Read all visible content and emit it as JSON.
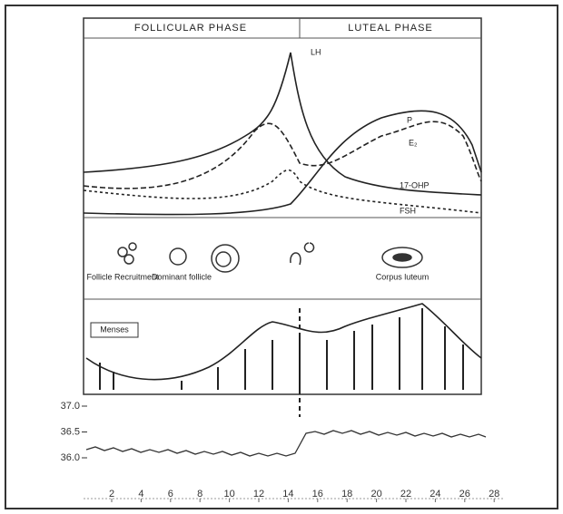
{
  "header": {
    "follicular": "FOLLICULAR PHASE",
    "luteal": "LUTEAL PHASE"
  },
  "hormones": {
    "peak": "LH",
    "progesterone": "P",
    "estradiol": "E₂",
    "oh": "17-OHP",
    "fsh": "FSH"
  },
  "ovary": {
    "recruitment": "Follicle Recruitment",
    "dominant": "Dominant follicle",
    "luteum": "Corpus luteum"
  },
  "endometrium": {
    "label": "Menses"
  },
  "temperature": {
    "yticks": [
      {
        "value": 37.0,
        "label": "37.0"
      },
      36.5,
      {
        "value": 36.0,
        "label": "36.0"
      }
    ],
    "xticks": [
      2,
      4,
      6,
      8,
      10,
      12,
      14,
      16,
      18,
      20,
      22,
      24,
      26,
      28
    ]
  }
}
